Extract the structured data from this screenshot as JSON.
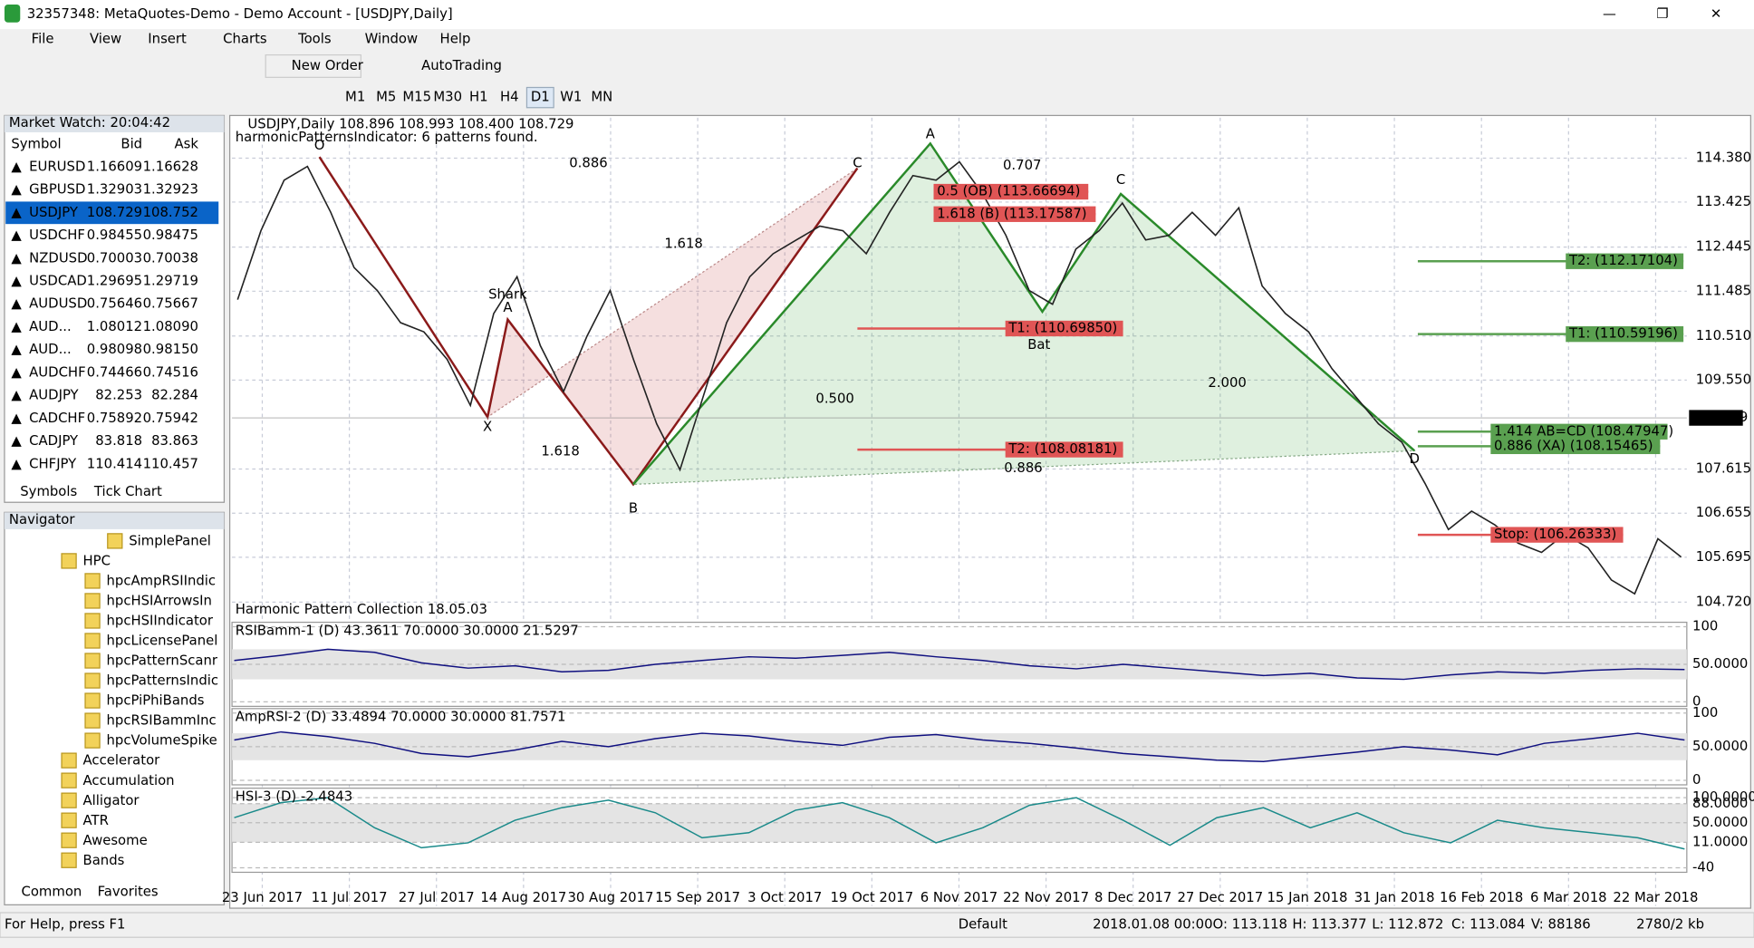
{
  "window": {
    "title": "32357348: MetaQuotes-Demo - Demo Account - [USDJPY,Daily]"
  },
  "menu": [
    "File",
    "View",
    "Insert",
    "Charts",
    "Tools",
    "Window",
    "Help"
  ],
  "toolbar": {
    "new_order": "New Order",
    "auto_trading": "AutoTrading",
    "timeframes": [
      "M1",
      "M5",
      "M15",
      "M30",
      "H1",
      "H4",
      "D1",
      "W1",
      "MN"
    ]
  },
  "market_watch": {
    "title": "Market Watch: 20:04:42",
    "columns": [
      "Symbol",
      "Bid",
      "Ask"
    ],
    "rows": [
      [
        "EURUSD",
        "1.16609",
        "1.16628"
      ],
      [
        "GBPUSD",
        "1.32903",
        "1.32923"
      ],
      [
        "USDJPY",
        "108.729",
        "108.752"
      ],
      [
        "USDCHF",
        "0.98455",
        "0.98475"
      ],
      [
        "NZDUSD",
        "0.70003",
        "0.70038"
      ],
      [
        "USDCAD",
        "1.29695",
        "1.29719"
      ],
      [
        "AUDUSD",
        "0.75646",
        "0.75667"
      ],
      [
        "AUD...",
        "1.08012",
        "1.08090"
      ],
      [
        "AUD...",
        "0.98098",
        "0.98150"
      ],
      [
        "AUDCHF",
        "0.74466",
        "0.74516"
      ],
      [
        "AUDJPY",
        "82.253",
        "82.284"
      ],
      [
        "CADCHF",
        "0.75892",
        "0.75942"
      ],
      [
        "CADJPY",
        "83.818",
        "83.863"
      ],
      [
        "CHFJPY",
        "110.414",
        "110.457"
      ]
    ],
    "tabs": [
      "Symbols",
      "Tick Chart"
    ]
  },
  "navigator": {
    "title": "Navigator",
    "items": [
      "SimplePanel",
      "HPC",
      "hpcAmpRSIIndic",
      "hpcHSIArrowsIn",
      "hpcHSIIndicator",
      "hpcLicensePanel",
      "hpcPatternScanr",
      "hpcPatternsIndic",
      "hpcPiPhiBands",
      "hpcRSIBammInc",
      "hpcVolumeSpike",
      "Accelerator",
      "Accumulation",
      "Alligator",
      "ATR",
      "Awesome",
      "Bands"
    ],
    "tabs": [
      "Common",
      "Favorites"
    ]
  },
  "chart": {
    "type": "line",
    "info": "USDJPY,Daily 108.896 108.993 108.400 108.729",
    "indicator_note": "harmonicPatternsIndicator: 6 patterns found.",
    "footer": "Harmonic Pattern Collection 18.05.03",
    "color": "#222222",
    "ylim": [
      104.33,
      115.26
    ],
    "yticks": [
      {
        "value": 114.38,
        "label": "114.380"
      },
      {
        "value": 113.425,
        "label": "113.425"
      },
      {
        "value": 112.445,
        "label": "112.445"
      },
      {
        "value": 111.485,
        "label": "111.485"
      },
      {
        "value": 110.51,
        "label": "110.510"
      },
      {
        "value": 109.55,
        "label": "109.550"
      },
      107.615,
      106.655,
      105.695,
      {
        "value": 104.72,
        "label": "104.720"
      }
    ],
    "current_price": 108.729,
    "values": [
      111.3,
      112.8,
      113.9,
      114.2,
      113.2,
      112.0,
      111.5,
      110.8,
      110.6,
      110.0,
      109.0,
      111.0,
      111.8,
      110.3,
      109.3,
      110.5,
      111.5,
      110.0,
      108.6,
      107.6,
      109.2,
      110.8,
      111.8,
      112.3,
      112.6,
      112.9,
      112.8,
      112.3,
      113.2,
      114.0,
      113.9,
      114.3,
      113.6,
      112.7,
      111.5,
      111.2,
      112.4,
      112.8,
      113.4,
      112.6,
      112.7,
      113.2,
      112.7,
      113.3,
      111.6,
      111.0,
      110.6,
      109.8,
      109.2,
      108.6,
      108.2,
      107.3,
      106.3,
      106.7,
      106.4,
      106.0,
      105.8,
      106.2,
      105.9,
      105.2,
      104.9,
      106.1,
      105.7
    ],
    "x_labels": [
      "23 Jun 2017",
      "11 Jul 2017",
      "27 Jul 2017",
      "14 Aug 2017",
      "30 Aug 2017",
      "15 Sep 2017",
      "3 Oct 2017",
      "19 Oct 2017",
      "6 Nov 2017",
      "22 Nov 2017",
      "8 Dec 2017",
      "27 Dec 2017",
      "15 Jan 2018",
      "31 Jan 2018",
      "16 Feb 2018",
      "6 Mar 2018",
      "22 Mar 2018"
    ],
    "points": [
      "O",
      "A",
      "Shark",
      "X",
      "B",
      "C",
      "A",
      "Bat",
      "C",
      "D"
    ],
    "ratios": [
      "0.886",
      "1.618",
      "1.618",
      "0.500",
      "0.707",
      "2.000",
      "0.886"
    ],
    "levels": [
      {
        "text": "0.5 (OB) (113.66694)",
        "color": "#e05555"
      },
      {
        "text": "1.618 (B) (113.17587)",
        "color": "#e05555"
      },
      {
        "text": "T1: (110.69850)",
        "color": "#e05555"
      },
      {
        "text": "T2: (108.08181)",
        "color": "#e05555"
      },
      {
        "text": "T2: (112.17104)",
        "color": "#5aa050"
      },
      {
        "text": "T1: (110.59196)",
        "color": "#5aa050"
      },
      {
        "text": "1.414 AB=CD (108.47947)",
        "color": "#5aa050"
      },
      {
        "text": "0.886 (XA) (108.15465)",
        "color": "#5aa050"
      },
      {
        "text": "Stop: (106.26333)",
        "color": "#e05555"
      }
    ]
  },
  "indicators": [
    {
      "label": "RSIBamm-1 (D) 43.3611 70.0000 30.0000 21.5297",
      "ylim": [
        0,
        100
      ],
      "yticks": [
        100,
        {
          "value": 50,
          "label": "50.0000"
        },
        0
      ],
      "values": [
        55,
        62,
        70,
        66,
        52,
        45,
        48,
        40,
        42,
        50,
        55,
        60,
        58,
        62,
        66,
        60,
        55,
        48,
        44,
        50,
        45,
        40,
        35,
        38,
        32,
        30,
        36,
        40,
        38,
        42,
        44,
        43
      ]
    },
    {
      "label": "AmpRSI-2 (D) 33.4894 70.0000 30.0000 81.7571",
      "ylim": [
        0,
        100
      ],
      "yticks": [
        100,
        {
          "value": 50,
          "label": "50.0000"
        },
        0
      ],
      "values": [
        60,
        72,
        65,
        55,
        40,
        35,
        45,
        58,
        50,
        62,
        70,
        66,
        58,
        52,
        64,
        68,
        60,
        55,
        48,
        40,
        35,
        30,
        28,
        35,
        42,
        50,
        45,
        38,
        55,
        62,
        70,
        60
      ]
    },
    {
      "label": "HSI-3 (D) -2.4843",
      "ylim": [
        -40,
        110
      ],
      "yticks": [
        {
          "value": 100,
          "label": "100.0000"
        },
        {
          "value": 88,
          "label": "88.0000"
        },
        {
          "value": 50,
          "label": "50.0000"
        },
        {
          "value": 11,
          "label": "11.0000"
        },
        -40
      ],
      "values": [
        60,
        90,
        100,
        40,
        0,
        10,
        55,
        80,
        95,
        70,
        20,
        30,
        75,
        90,
        60,
        10,
        40,
        85,
        100,
        55,
        5,
        60,
        80,
        40,
        70,
        30,
        10,
        55,
        40,
        30,
        20,
        -2.4843
      ]
    }
  ],
  "status": [
    "For Help, press F1",
    "Default",
    "2018.01.08 00:00",
    "O: 113.118",
    "H: 113.377",
    "L: 112.872",
    "C: 113.084",
    "V: 88186",
    "2780/2 kb"
  ]
}
